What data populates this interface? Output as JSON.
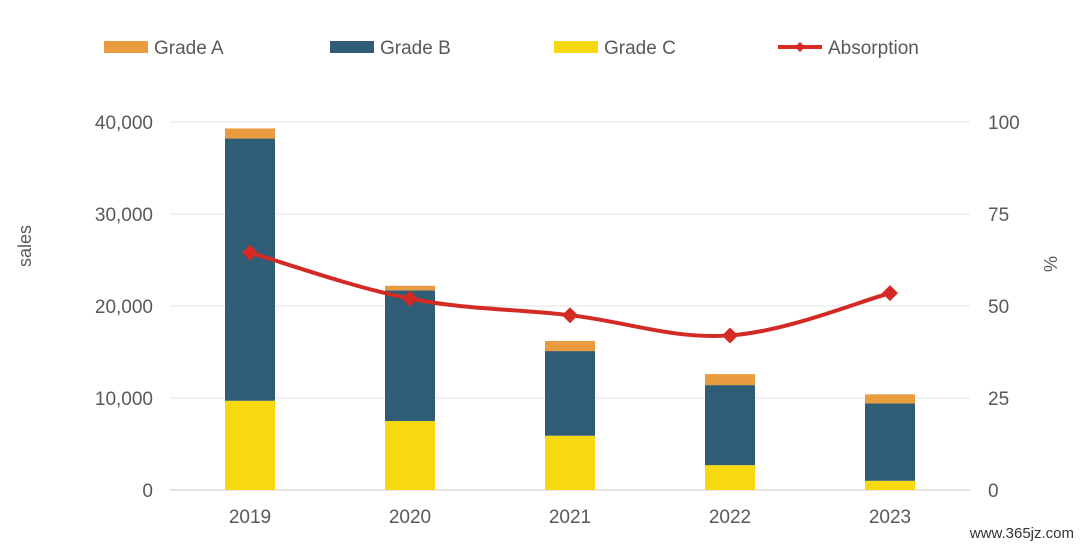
{
  "chart_data": {
    "type": "bar",
    "stacked": true,
    "categories": [
      "2019",
      "2020",
      "2021",
      "2022",
      "2023"
    ],
    "series": [
      {
        "name": "Grade C",
        "kind": "bar",
        "axis": "left",
        "color": "#f6d90f",
        "values": [
          9700,
          7500,
          5900,
          2700,
          1000
        ]
      },
      {
        "name": "Grade B",
        "kind": "bar",
        "axis": "left",
        "color": "#2f5d76",
        "values": [
          28500,
          14200,
          9200,
          8700,
          8400
        ]
      },
      {
        "name": "Grade A",
        "kind": "bar",
        "axis": "left",
        "color": "#e99b40",
        "values": [
          1100,
          500,
          1100,
          1200,
          1000
        ]
      },
      {
        "name": "Absorption",
        "kind": "line",
        "axis": "right",
        "color": "#d42a26",
        "values": [
          64.5,
          52,
          47.5,
          42,
          53.5
        ]
      }
    ],
    "ylabel": "sales",
    "y2label": "%",
    "ylim": [
      0,
      40000
    ],
    "y2lim": [
      0,
      100
    ],
    "yticks": [
      "0",
      "10,000",
      "20,000",
      "30,000",
      "40,000"
    ],
    "y2ticks": [
      "0",
      "25",
      "50",
      "75",
      "100"
    ],
    "legend_position": "top",
    "grid": true
  },
  "watermark": "www.365jz.com"
}
